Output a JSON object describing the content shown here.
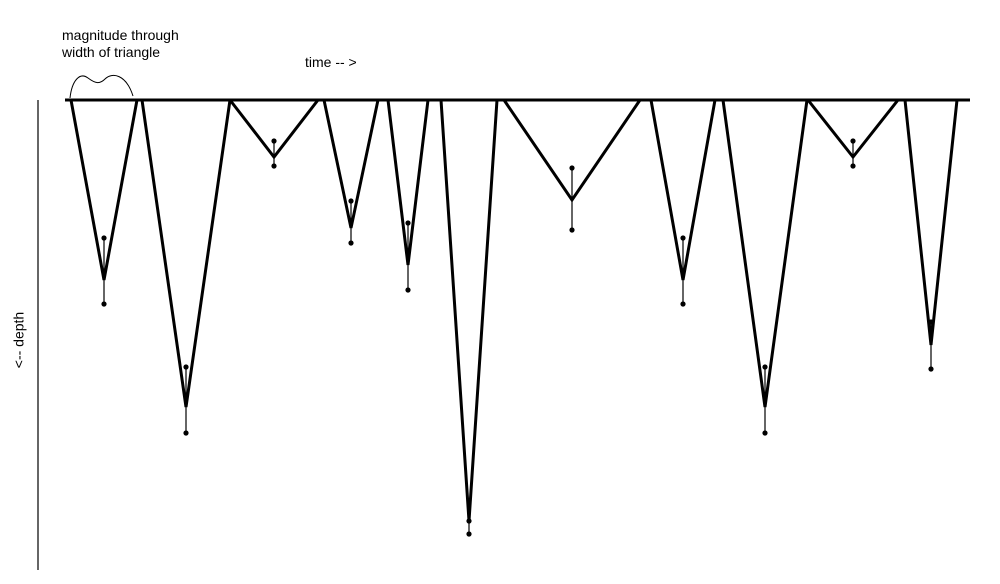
{
  "labels": {
    "magnitude_line1": "magnitude through",
    "magnitude_line2": "width of triangle",
    "time_axis": "time -- >",
    "depth_axis": "<-- depth"
  },
  "diagram": {
    "line_color": "#000000",
    "events": [
      {
        "id": 1,
        "magnitude": 66,
        "depth": 180,
        "uncertainty": [
          138,
          204
        ]
      },
      {
        "id": 2,
        "magnitude": 88,
        "depth": 307,
        "uncertainty": [
          267,
          333
        ]
      },
      {
        "id": 3,
        "magnitude": 88,
        "depth": 57,
        "uncertainty": [
          41,
          66
        ]
      },
      {
        "id": 4,
        "magnitude": 54,
        "depth": 128,
        "uncertainty": [
          101,
          143
        ]
      },
      {
        "id": 5,
        "magnitude": 40,
        "depth": 165,
        "uncertainty": [
          123,
          190
        ]
      },
      {
        "id": 6,
        "magnitude": 56,
        "depth": 421,
        "uncertainty": [
          421,
          434
        ]
      },
      {
        "id": 7,
        "magnitude": 136,
        "depth": 100,
        "uncertainty": [
          68,
          130
        ]
      },
      {
        "id": 8,
        "magnitude": 64,
        "depth": 180,
        "uncertainty": [
          138,
          204
        ]
      },
      {
        "id": 9,
        "magnitude": 84,
        "depth": 307,
        "uncertainty": [
          267,
          333
        ]
      },
      {
        "id": 10,
        "magnitude": 90,
        "depth": 57,
        "uncertainty": [
          41,
          66
        ]
      },
      {
        "id": 11,
        "magnitude": 52,
        "depth": 245,
        "uncertainty": [
          222,
          269
        ]
      }
    ]
  }
}
